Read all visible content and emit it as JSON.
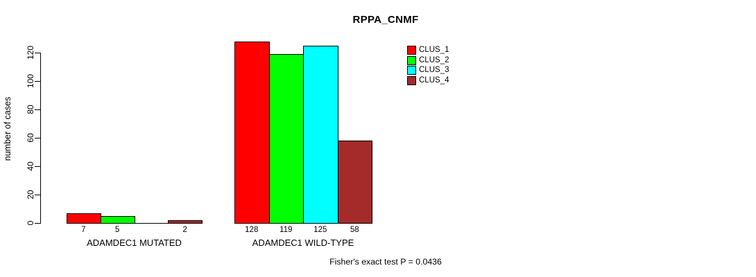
{
  "chart_data": {
    "type": "bar",
    "title": "RPPA_CNMF",
    "ylabel": "number of cases",
    "xlabel": "",
    "ylim": [
      0,
      132
    ],
    "yticks": [
      0,
      20,
      40,
      60,
      80,
      100,
      120
    ],
    "categories": [
      "ADAMDEC1 MUTATED",
      "ADAMDEC1 WILD-TYPE"
    ],
    "series": [
      {
        "name": "CLUS_1",
        "color": "#ff0000",
        "values": [
          7,
          128
        ]
      },
      {
        "name": "CLUS_2",
        "color": "#00ff00",
        "values": [
          5,
          119
        ]
      },
      {
        "name": "CLUS_3",
        "color": "#00ffff",
        "values": [
          0,
          125
        ]
      },
      {
        "name": "CLUS_4",
        "color": "#a52a2a",
        "values": [
          2,
          58
        ]
      }
    ],
    "value_labels": [
      [
        "7",
        "5",
        "",
        "2"
      ],
      [
        "128",
        "119",
        "125",
        "58"
      ]
    ],
    "legend": {
      "position": "top-right",
      "entries": [
        "CLUS_1",
        "CLUS_2",
        "CLUS_3",
        "CLUS_4"
      ]
    },
    "grid": "off",
    "annotation": "Fisher's exact test P = 0.0436"
  }
}
